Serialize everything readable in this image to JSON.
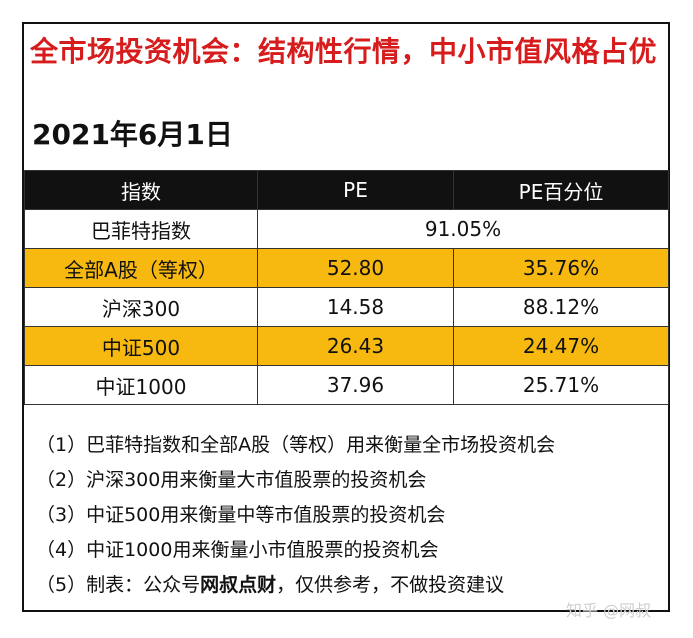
{
  "title": "全市场投资机会：结构性行情，中小市值风格占优",
  "date": "2021年6月1日",
  "table": {
    "headers": [
      "指数",
      "PE",
      "PE百分位"
    ],
    "buffett_row": {
      "name": "巴菲特指数",
      "value": "91.05%"
    },
    "rows": [
      {
        "name": "全部A股（等权）",
        "pe": "52.80",
        "pct": "35.76%",
        "highlight": true
      },
      {
        "name": "沪深300",
        "pe": "14.58",
        "pct": "88.12%",
        "highlight": false
      },
      {
        "name": "中证500",
        "pe": "26.43",
        "pct": "24.47%",
        "highlight": true
      },
      {
        "name": "中证1000",
        "pe": "37.96",
        "pct": "25.71%",
        "highlight": false
      }
    ]
  },
  "notes": [
    "（1）巴菲特指数和全部A股（等权）用来衡量全市场投资机会",
    "（2）沪深300用来衡量大市值股票的投资机会",
    "（3）中证500用来衡量中等市值股票的投资机会",
    "（4）中证1000用来衡量小市值股票的投资机会"
  ],
  "note5": {
    "prefix": "（5）制表：公众号",
    "bold": "网叔点财",
    "suffix": "，仅供参考，不做投资建议"
  },
  "watermark": "知乎 @网叔",
  "colors": {
    "title": "#d61c1c",
    "highlight": "#f7b90f",
    "header_bg": "#111111"
  }
}
